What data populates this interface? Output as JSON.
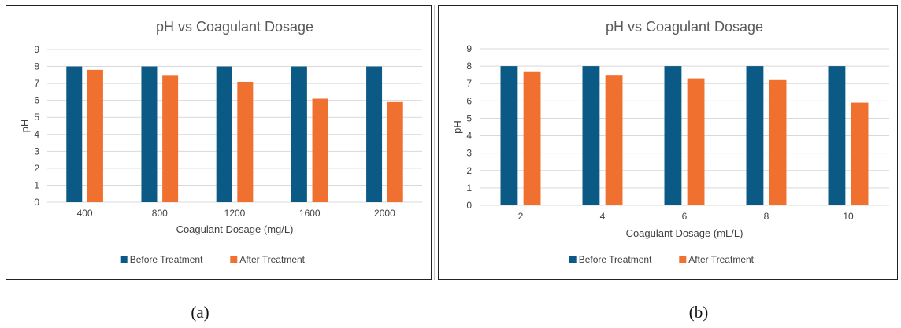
{
  "colors": {
    "before": "#0b5a85",
    "after": "#f07030"
  },
  "chart_data": [
    {
      "id": "a",
      "type": "bar",
      "title": "pH vs Coagulant Dosage",
      "xlabel": "Coagulant Dosage (mg/L)",
      "ylabel": "pH",
      "ylim": [
        0,
        9
      ],
      "yticks": [
        0,
        1,
        2,
        3,
        4,
        5,
        6,
        7,
        8,
        9
      ],
      "categories": [
        "400",
        "800",
        "1200",
        "1600",
        "2000"
      ],
      "series": [
        {
          "name": "Before Treatment",
          "values": [
            8.0,
            8.0,
            8.0,
            8.0,
            8.0
          ]
        },
        {
          "name": "After Treatment",
          "values": [
            7.8,
            7.5,
            7.1,
            6.1,
            5.9
          ]
        }
      ],
      "grid": true,
      "legend": "bottom",
      "caption": "(a)"
    },
    {
      "id": "b",
      "type": "bar",
      "title": "pH vs Coagulant Dosage",
      "xlabel": "Coagulant Dosage (mL/L)",
      "ylabel": "pH",
      "ylim": [
        0,
        9
      ],
      "yticks": [
        0,
        1,
        2,
        3,
        4,
        5,
        6,
        7,
        8,
        9
      ],
      "categories": [
        "2",
        "4",
        "6",
        "8",
        "10"
      ],
      "series": [
        {
          "name": "Before Treatment",
          "values": [
            8.0,
            8.0,
            8.0,
            8.0,
            8.0
          ]
        },
        {
          "name": "After Treatment",
          "values": [
            7.7,
            7.5,
            7.3,
            7.2,
            5.9
          ]
        }
      ],
      "grid": true,
      "legend": "bottom",
      "caption": "(b)"
    }
  ]
}
